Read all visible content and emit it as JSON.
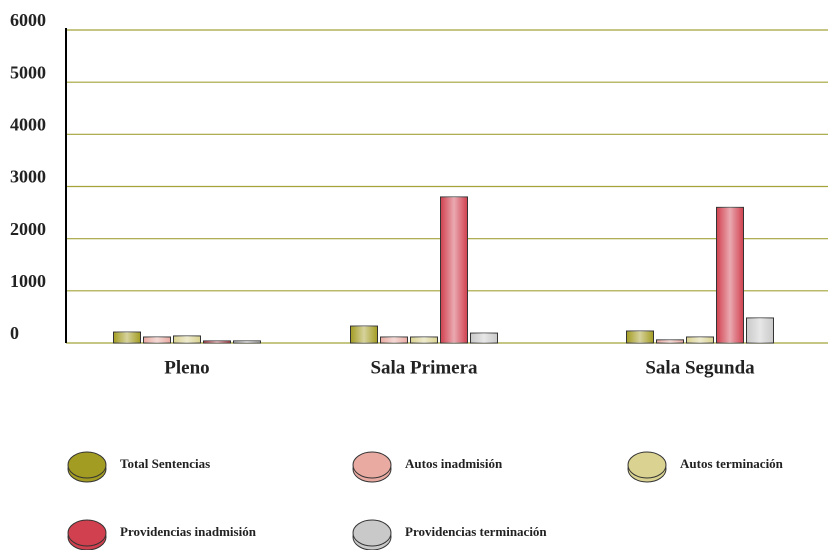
{
  "chart_data": {
    "type": "bar",
    "categories": [
      "Pleno",
      "Sala Primera",
      "Sala Segunda"
    ],
    "series": [
      {
        "name": "Total Sentencias",
        "color": "#a39c22",
        "values": [
          210,
          325,
          230
        ]
      },
      {
        "name": "Autos inadmisión",
        "color": "#e9aaa2",
        "values": [
          115,
          115,
          60
        ]
      },
      {
        "name": "Autos terminación",
        "color": "#d9d290",
        "values": [
          135,
          115,
          115
        ]
      },
      {
        "name": "Providencias inadmisión",
        "color": "#d0404f",
        "values": [
          40,
          2800,
          2600
        ]
      },
      {
        "name": "Providencias terminación",
        "color": "#c9c9c9",
        "values": [
          40,
          190,
          480
        ]
      }
    ],
    "ylim": [
      0,
      6000
    ],
    "yticks": [
      0,
      1000,
      2000,
      3000,
      4000,
      5000,
      6000
    ],
    "grid": true
  }
}
